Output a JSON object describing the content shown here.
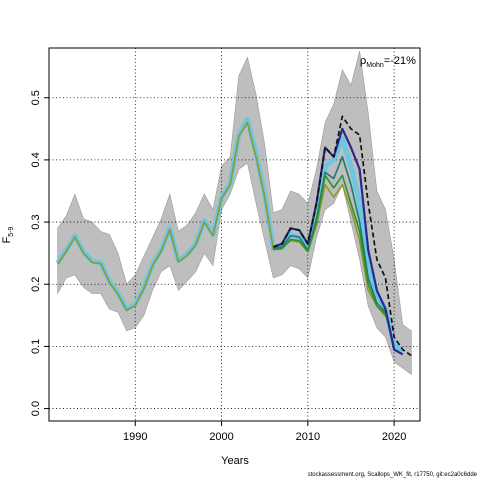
{
  "chart_data": {
    "type": "line",
    "xlabel": "Years",
    "ylabel_main": "F",
    "ylabel_sub": "5-9",
    "xlim": [
      1980,
      2023
    ],
    "ylim": [
      -0.02,
      0.58
    ],
    "x_ticks": [
      1990,
      2000,
      2010,
      2020
    ],
    "y_ticks": [
      0.0,
      0.1,
      0.2,
      0.3,
      0.4,
      0.5
    ],
    "y_tick_labels": [
      "0.0",
      "0.1",
      "0.2",
      "0.3",
      "0.4",
      "0.5"
    ],
    "grid": "dotted",
    "annotation": {
      "rho_symbol": "ρ",
      "rho_sub": "Mohn",
      "rho_value": "=-21%"
    },
    "colors": {
      "band": "#bebebe",
      "band_edge": "#9a9a9a",
      "light_blue": "#6ec6e0",
      "dark_blue": "#2a2a8a",
      "teal": "#1f7a72",
      "green": "#2f8f2f",
      "olive": "#8c9a28",
      "black": "#111111"
    },
    "confidence_band": {
      "years": [
        1981,
        1982,
        1983,
        1984,
        1985,
        1986,
        1987,
        1988,
        1989,
        1990,
        1991,
        1992,
        1993,
        1994,
        1995,
        1996,
        1997,
        1998,
        1999,
        2000,
        2001,
        2002,
        2003,
        2004,
        2005,
        2006,
        2007,
        2008,
        2009,
        2010,
        2011,
        2012,
        2013,
        2014,
        2015,
        2016,
        2017,
        2018,
        2019,
        2020,
        2021,
        2022
      ],
      "upper": [
        0.29,
        0.31,
        0.345,
        0.305,
        0.3,
        0.285,
        0.28,
        0.25,
        0.2,
        0.215,
        0.245,
        0.275,
        0.305,
        0.345,
        0.285,
        0.295,
        0.315,
        0.345,
        0.32,
        0.39,
        0.405,
        0.535,
        0.565,
        0.505,
        0.425,
        0.315,
        0.32,
        0.35,
        0.345,
        0.33,
        0.385,
        0.46,
        0.49,
        0.545,
        0.52,
        0.575,
        0.475,
        0.35,
        0.32,
        0.24,
        0.135,
        0.125
      ],
      "lower": [
        0.185,
        0.21,
        0.215,
        0.195,
        0.185,
        0.185,
        0.16,
        0.155,
        0.125,
        0.13,
        0.15,
        0.19,
        0.22,
        0.23,
        0.19,
        0.205,
        0.22,
        0.25,
        0.23,
        0.32,
        0.345,
        0.385,
        0.395,
        0.33,
        0.27,
        0.21,
        0.215,
        0.23,
        0.225,
        0.21,
        0.275,
        0.32,
        0.33,
        0.36,
        0.3,
        0.24,
        0.165,
        0.13,
        0.115,
        0.075,
        0.065,
        0.055
      ]
    },
    "series": [
      {
        "color_key": "light_blue",
        "width": 5,
        "dash": "",
        "x": [
          1981,
          1982,
          1983,
          1984,
          1985,
          1986,
          1987,
          1988,
          1989,
          1990,
          1991,
          1992,
          1993,
          1994,
          1995,
          1996,
          1997,
          1998,
          1999,
          2000,
          2001,
          2002,
          2003,
          2004,
          2005,
          2006,
          2007,
          2008,
          2009,
          2010,
          2011,
          2012,
          2013,
          2014,
          2015,
          2016,
          2017,
          2018,
          2019,
          2020,
          2021
        ],
        "y": [
          0.234,
          0.255,
          0.278,
          0.252,
          0.237,
          0.235,
          0.205,
          0.186,
          0.16,
          0.168,
          0.195,
          0.232,
          0.255,
          0.29,
          0.238,
          0.248,
          0.265,
          0.302,
          0.28,
          0.34,
          0.362,
          0.44,
          0.465,
          0.41,
          0.345,
          0.258,
          0.262,
          0.28,
          0.275,
          0.258,
          0.305,
          0.39,
          0.4,
          0.435,
          0.39,
          0.33,
          0.225,
          0.185,
          0.16,
          0.105,
          0.09
        ]
      },
      {
        "color_key": "olive",
        "width": 1.6,
        "dash": "",
        "x": [
          1981,
          1982,
          1983,
          1984,
          1985,
          1986,
          1987,
          1988,
          1989,
          1990,
          1991,
          1992,
          1993,
          1994,
          1995,
          1996,
          1997,
          1998,
          1999,
          2000,
          2001,
          2002,
          2003,
          2004,
          2005,
          2006,
          2007,
          2008,
          2009,
          2010,
          2011,
          2012,
          2013,
          2014,
          2015,
          2016,
          2017,
          2018,
          2019
        ],
        "y": [
          0.232,
          0.253,
          0.276,
          0.25,
          0.235,
          0.233,
          0.203,
          0.184,
          0.158,
          0.166,
          0.193,
          0.23,
          0.253,
          0.288,
          0.236,
          0.246,
          0.263,
          0.3,
          0.278,
          0.338,
          0.36,
          0.438,
          0.46,
          0.405,
          0.34,
          0.256,
          0.258,
          0.27,
          0.268,
          0.252,
          0.295,
          0.36,
          0.34,
          0.36,
          0.32,
          0.27,
          0.19,
          0.165,
          0.148
        ]
      },
      {
        "color_key": "teal",
        "width": 1.6,
        "dash": "",
        "x": [
          2006,
          2007,
          2008,
          2009,
          2010,
          2011,
          2012,
          2013,
          2014,
          2015,
          2016,
          2017,
          2018,
          2019,
          2020
        ],
        "y": [
          0.258,
          0.26,
          0.278,
          0.276,
          0.255,
          0.305,
          0.38,
          0.37,
          0.405,
          0.36,
          0.3,
          0.21,
          0.17,
          0.155,
          0.1
        ]
      },
      {
        "color_key": "green",
        "width": 1.6,
        "dash": "",
        "x": [
          2006,
          2007,
          2008,
          2009,
          2010,
          2011,
          2012,
          2013,
          2014,
          2015,
          2016,
          2017,
          2018,
          2019
        ],
        "y": [
          0.256,
          0.257,
          0.272,
          0.27,
          0.253,
          0.3,
          0.375,
          0.355,
          0.375,
          0.33,
          0.285,
          0.2,
          0.165,
          0.152
        ]
      },
      {
        "color_key": "dark_blue",
        "width": 2.2,
        "dash": "",
        "x": [
          2006,
          2007,
          2008,
          2009,
          2010,
          2011,
          2012,
          2013,
          2014,
          2015,
          2016,
          2017,
          2018,
          2019,
          2020,
          2021
        ],
        "y": [
          0.26,
          0.265,
          0.29,
          0.287,
          0.265,
          0.33,
          0.42,
          0.405,
          0.45,
          0.42,
          0.385,
          0.255,
          0.19,
          0.16,
          0.095,
          0.087
        ]
      },
      {
        "color_key": "black",
        "width": 1.7,
        "dash": "5,3",
        "x": [
          2006,
          2007,
          2008,
          2009,
          2010,
          2011,
          2012,
          2013,
          2014,
          2015,
          2016,
          2017,
          2018,
          2019,
          2020,
          2021,
          2022
        ],
        "y": [
          0.26,
          0.265,
          0.29,
          0.287,
          0.265,
          0.33,
          0.42,
          0.405,
          0.47,
          0.45,
          0.44,
          0.33,
          0.24,
          0.21,
          0.115,
          0.095,
          0.085
        ]
      }
    ]
  },
  "footer": "stockassessment.org, Scallops_WK_fit, r17750, git:ec2a0c6dde"
}
